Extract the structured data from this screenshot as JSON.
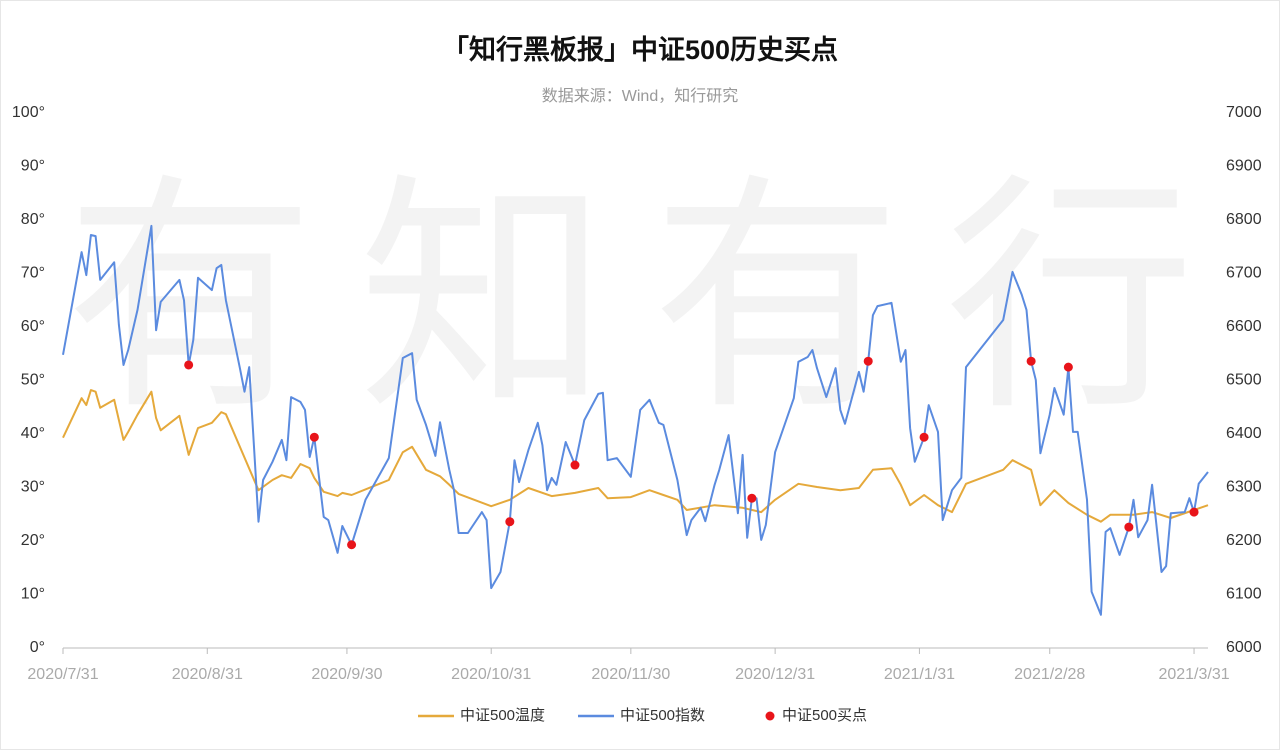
{
  "chart_data": {
    "type": "line",
    "title": "「知行黑板报」中证500历史买点",
    "subtitle": "数据来源：Wind，知行研究",
    "watermark": "有知有行",
    "xlim": [
      "2020/7/31",
      "2021/4/3"
    ],
    "xticks": [
      "2020/7/31",
      "2020/8/31",
      "2020/9/30",
      "2020/10/31",
      "2020/11/30",
      "2020/12/31",
      "2021/1/31",
      "2021/2/28",
      "2021/3/31"
    ],
    "ylim": [
      0,
      100
    ],
    "yticks": [
      {
        "value": 0,
        "label": "0°"
      },
      {
        "value": 10,
        "label": "10°"
      },
      {
        "value": 20,
        "label": "20°"
      },
      {
        "value": 30,
        "label": "30°"
      },
      {
        "value": 40,
        "label": "40°"
      },
      {
        "value": 50,
        "label": "50°"
      },
      {
        "value": 60,
        "label": "60°"
      },
      {
        "value": 70,
        "label": "70°"
      },
      {
        "value": 80,
        "label": "80°"
      },
      {
        "value": 90,
        "label": "90°"
      },
      {
        "value": 100,
        "label": "100°"
      }
    ],
    "y2lim": [
      6000,
      7000
    ],
    "y2ticks": [
      6000,
      6100,
      6200,
      6300,
      6400,
      6500,
      6600,
      6700,
      6800,
      6900,
      7000
    ],
    "grid": false,
    "legend": "bottom",
    "series": [
      {
        "name": "中证500温度",
        "type": "line",
        "axis": "y",
        "color": "#E5A93B",
        "x": [
          "2020/7/31",
          "2020/8/4",
          "2020/8/5",
          "2020/8/6",
          "2020/8/7",
          "2020/8/8",
          "2020/8/11",
          "2020/8/12",
          "2020/8/13",
          "2020/8/14",
          "2020/8/16",
          "2020/8/19",
          "2020/8/20",
          "2020/8/21",
          "2020/8/25",
          "2020/8/27",
          "2020/8/29",
          "2020/9/1",
          "2020/9/3",
          "2020/9/4",
          "2020/9/11",
          "2020/9/14",
          "2020/9/16",
          "2020/9/18",
          "2020/9/20",
          "2020/9/22",
          "2020/9/23",
          "2020/9/25",
          "2020/9/28",
          "2020/9/29",
          "2020/10/1",
          "2020/10/9",
          "2020/10/12",
          "2020/10/14",
          "2020/10/17",
          "2020/10/20",
          "2020/10/22",
          "2020/10/24",
          "2020/10/31",
          "2020/11/4",
          "2020/11/8",
          "2020/11/13",
          "2020/11/18",
          "2020/11/23",
          "2020/11/25",
          "2020/11/30",
          "2020/12/4",
          "2020/12/7",
          "2020/12/10",
          "2020/12/12",
          "2020/12/18",
          "2020/12/24",
          "2020/12/28",
          "2020/12/31",
          "2021/1/5",
          "2021/1/9",
          "2021/1/14",
          "2021/1/18",
          "2021/1/21",
          "2021/1/25",
          "2021/1/27",
          "2021/1/29",
          "2021/2/1",
          "2021/2/4",
          "2021/2/7",
          "2021/2/10",
          "2021/2/18",
          "2021/2/20",
          "2021/2/24",
          "2021/2/26",
          "2021/3/1",
          "2021/3/4",
          "2021/3/8",
          "2021/3/11",
          "2021/3/13",
          "2021/3/18",
          "2021/3/22",
          "2021/3/26",
          "2021/3/31",
          "2021/4/3"
        ],
        "values": [
          39.3,
          46.7,
          45.4,
          48.2,
          47.9,
          44.9,
          46.4,
          42.6,
          38.9,
          40.4,
          43.6,
          47.9,
          43,
          40.7,
          43.4,
          36.1,
          41.1,
          42.1,
          44.1,
          43.7,
          29.5,
          31.4,
          32.3,
          31.8,
          34.4,
          33.6,
          31.8,
          29.2,
          28.4,
          29,
          28.6,
          31.4,
          36.6,
          37.6,
          33.3,
          32.1,
          30.5,
          28.8,
          26.5,
          27.7,
          29.9,
          28.4,
          29,
          29.9,
          28,
          28.2,
          29.5,
          28.6,
          27.7,
          25.8,
          26.7,
          26.2,
          25.4,
          27.7,
          30.7,
          30.1,
          29.5,
          29.9,
          33.3,
          33.6,
          30.5,
          26.7,
          28.6,
          26.7,
          25.4,
          30.7,
          33.3,
          35.1,
          33.3,
          26.7,
          29.5,
          27.1,
          24.9,
          23.6,
          24.9,
          24.9,
          25.4,
          24.3,
          25.8,
          26.7
        ]
      },
      {
        "name": "中证500指数",
        "type": "line",
        "axis": "y2",
        "color": "#5B8BDF",
        "x": [
          "2020/7/31",
          "2020/8/4",
          "2020/8/5",
          "2020/8/6",
          "2020/8/7",
          "2020/8/8",
          "2020/8/11",
          "2020/8/12",
          "2020/8/13",
          "2020/8/14",
          "2020/8/16",
          "2020/8/19",
          "2020/8/20",
          "2020/8/21",
          "2020/8/25",
          "2020/8/26",
          "2020/8/27",
          "2020/8/28",
          "2020/8/29",
          "2020/9/1",
          "2020/9/2",
          "2020/9/3",
          "2020/9/4",
          "2020/9/7",
          "2020/9/8",
          "2020/9/9",
          "2020/9/11",
          "2020/9/12",
          "2020/9/14",
          "2020/9/16",
          "2020/9/17",
          "2020/9/18",
          "2020/9/20",
          "2020/9/21",
          "2020/9/22",
          "2020/9/23",
          "2020/9/25",
          "2020/9/26",
          "2020/9/28",
          "2020/9/29",
          "2020/10/1",
          "2020/10/4",
          "2020/10/9",
          "2020/10/12",
          "2020/10/14",
          "2020/10/15",
          "2020/10/17",
          "2020/10/19",
          "2020/10/20",
          "2020/10/22",
          "2020/10/23",
          "2020/10/24",
          "2020/10/26",
          "2020/10/29",
          "2020/10/30",
          "2020/10/31",
          "2020/11/2",
          "2020/11/4",
          "2020/11/5",
          "2020/11/6",
          "2020/11/8",
          "2020/11/10",
          "2020/11/11",
          "2020/11/12",
          "2020/11/13",
          "2020/11/14",
          "2020/11/16",
          "2020/11/18",
          "2020/11/20",
          "2020/11/23",
          "2020/11/24",
          "2020/11/25",
          "2020/11/27",
          "2020/11/30",
          "2020/12/2",
          "2020/12/4",
          "2020/12/6",
          "2020/12/7",
          "2020/12/10",
          "2020/12/12",
          "2020/12/13",
          "2020/12/15",
          "2020/12/16",
          "2020/12/18",
          "2020/12/19",
          "2020/12/21",
          "2020/12/23",
          "2020/12/24",
          "2020/12/25",
          "2020/12/26",
          "2020/12/27",
          "2020/12/28",
          "2020/12/29",
          "2020/12/31",
          "2021/1/4",
          "2021/1/5",
          "2021/1/7",
          "2021/1/8",
          "2021/1/9",
          "2021/1/11",
          "2021/1/13",
          "2021/1/14",
          "2021/1/15",
          "2021/1/18",
          "2021/1/19",
          "2021/1/20",
          "2021/1/21",
          "2021/1/22",
          "2021/1/25",
          "2021/1/27",
          "2021/1/28",
          "2021/1/29",
          "2021/1/30",
          "2021/2/1",
          "2021/2/2",
          "2021/2/4",
          "2021/2/5",
          "2021/2/7",
          "2021/2/9",
          "2021/2/10",
          "2021/2/18",
          "2021/2/20",
          "2021/2/22",
          "2021/2/23",
          "2021/2/24",
          "2021/2/25",
          "2021/2/26",
          "2021/2/28",
          "2021/3/1",
          "2021/3/3",
          "2021/3/4",
          "2021/3/5",
          "2021/3/6",
          "2021/3/8",
          "2021/3/9",
          "2021/3/11",
          "2021/3/12",
          "2021/3/13",
          "2021/3/15",
          "2021/3/17",
          "2021/3/18",
          "2021/3/19",
          "2021/3/21",
          "2021/3/22",
          "2021/3/24",
          "2021/3/25",
          "2021/3/26",
          "2021/3/29",
          "2021/3/30",
          "2021/3/31",
          "2021/4/1",
          "2021/4/3"
        ],
        "values": [
          6548,
          6740,
          6697,
          6772,
          6770,
          6688,
          6721,
          6604,
          6529,
          6557,
          6632,
          6789,
          6594,
          6647,
          6688,
          6650,
          6529,
          6576,
          6692,
          6669,
          6710,
          6716,
          6650,
          6523,
          6479,
          6525,
          6236,
          6314,
          6348,
          6389,
          6351,
          6469,
          6460,
          6445,
          6357,
          6394,
          6245,
          6239,
          6178,
          6228,
          6193,
          6277,
          6355,
          6542,
          6551,
          6464,
          6417,
          6359,
          6422,
          6333,
          6295,
          6215,
          6215,
          6254,
          6239,
          6112,
          6142,
          6236,
          6351,
          6310,
          6370,
          6421,
          6379,
          6295,
          6318,
          6305,
          6385,
          6342,
          6426,
          6475,
          6477,
          6351,
          6355,
          6320,
          6445,
          6464,
          6421,
          6417,
          6314,
          6211,
          6239,
          6262,
          6237,
          6305,
          6333,
          6398,
          6252,
          6361,
          6206,
          6280,
          6280,
          6202,
          6230,
          6366,
          6467,
          6535,
          6544,
          6557,
          6523,
          6469,
          6523,
          6445,
          6419,
          6516,
          6479,
          6536,
          6622,
          6639,
          6645,
          6535,
          6557,
          6411,
          6348,
          6394,
          6454,
          6404,
          6239,
          6295,
          6318,
          6525,
          6613,
          6703,
          6660,
          6632,
          6536,
          6501,
          6364,
          6436,
          6486,
          6436,
          6525,
          6404,
          6404,
          6277,
          6105,
          6062,
          6217,
          6224,
          6174,
          6226,
          6277,
          6207,
          6239,
          6305,
          6142,
          6153,
          6252,
          6254,
          6280,
          6254,
          6307,
          6329
        ]
      },
      {
        "name": "中证500买点",
        "type": "scatter",
        "axis": "y2",
        "color": "#E8141A",
        "x": [
          "2020/8/27",
          "2020/9/23",
          "2020/10/1",
          "2020/11/4",
          "2020/11/18",
          "2020/12/26",
          "2021/1/20",
          "2021/2/1",
          "2021/2/24",
          "2021/3/4",
          "2021/3/17",
          "2021/3/31"
        ],
        "values": [
          6529,
          6394,
          6193,
          6236,
          6342,
          6280,
          6536,
          6394,
          6536,
          6525,
          6226,
          6254
        ]
      }
    ]
  }
}
